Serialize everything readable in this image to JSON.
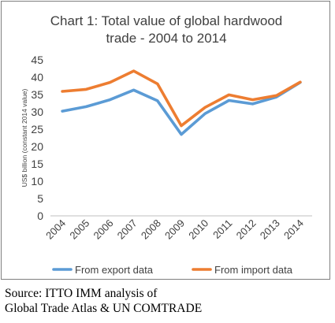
{
  "chart_data": {
    "type": "line",
    "title_lines": [
      "Chart 1: Total value of global hardwood",
      "trade - 2004 to 2014"
    ],
    "ylabel": "US$ billion (constant 2014 value)",
    "xlabel": "",
    "categories": [
      "2004",
      "2005",
      "2006",
      "2007",
      "2008",
      "2009",
      "2010",
      "2011",
      "2012",
      "2013",
      "2014"
    ],
    "ylim": [
      0,
      45
    ],
    "yticks": [
      0,
      5,
      10,
      15,
      20,
      25,
      30,
      35,
      40,
      45
    ],
    "grid": false,
    "legend_position": "bottom",
    "series": [
      {
        "name": "From export data",
        "color": "#5b9bd5",
        "values": [
          30.2,
          31.5,
          33.5,
          36.3,
          33.2,
          23.5,
          29.5,
          33.3,
          32.3,
          34.3,
          38.5
        ]
      },
      {
        "name": "From import data",
        "color": "#ed7d31",
        "values": [
          35.9,
          36.5,
          38.5,
          41.8,
          38.1,
          26.0,
          31.3,
          34.9,
          33.5,
          34.7,
          38.6
        ]
      }
    ]
  },
  "source": {
    "line1": "Source: ITTO IMM analysis of",
    "line2": "Global Trade Atlas & UN COMTRADE"
  }
}
